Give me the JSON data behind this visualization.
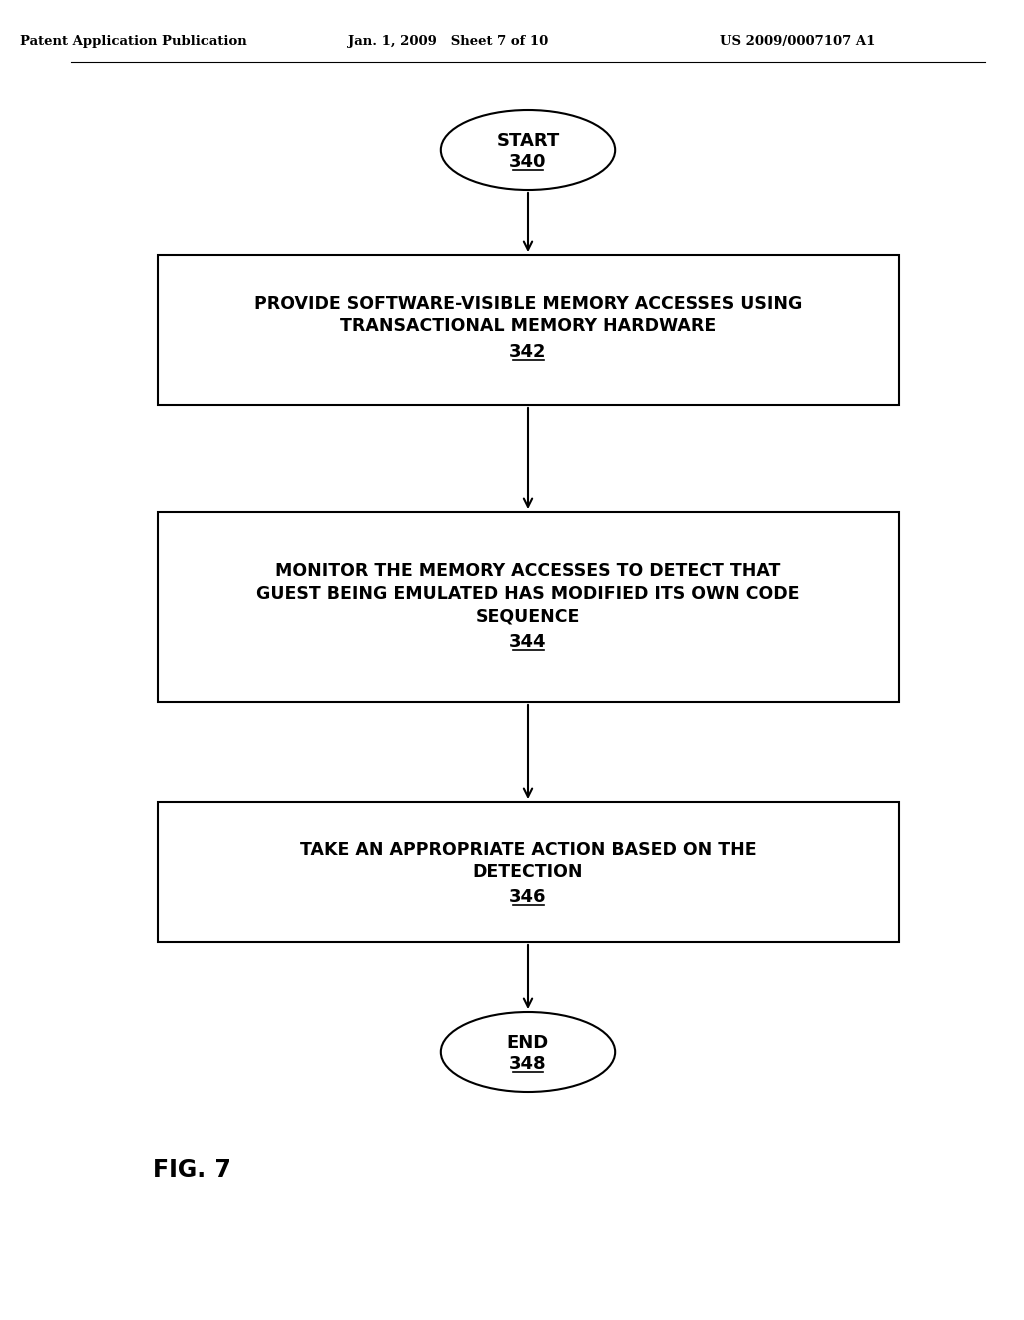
{
  "bg_color": "#ffffff",
  "header_left": "Patent Application Publication",
  "header_mid": "Jan. 1, 2009   Sheet 7 of 10",
  "header_right": "US 2009/0007107 A1",
  "fig_label": "FIG. 7",
  "start_label": "START",
  "start_num": "340",
  "end_label": "END",
  "end_num": "348",
  "boxes": [
    {
      "lines": [
        "PROVIDE SOFTWARE-VISIBLE MEMORY ACCESSES USING",
        "TRANSACTIONAL MEMORY HARDWARE"
      ],
      "num": "342"
    },
    {
      "lines": [
        "MONITOR THE MEMORY ACCESSES TO DETECT THAT",
        "GUEST BEING EMULATED HAS MODIFIED ITS OWN CODE",
        "SEQUENCE"
      ],
      "num": "344"
    },
    {
      "lines": [
        "TAKE AN APPROPRIATE ACTION BASED ON THE",
        "DETECTION"
      ],
      "num": "346"
    }
  ],
  "text_color": "#000000",
  "box_edge_color": "#000000",
  "arrow_color": "#000000"
}
